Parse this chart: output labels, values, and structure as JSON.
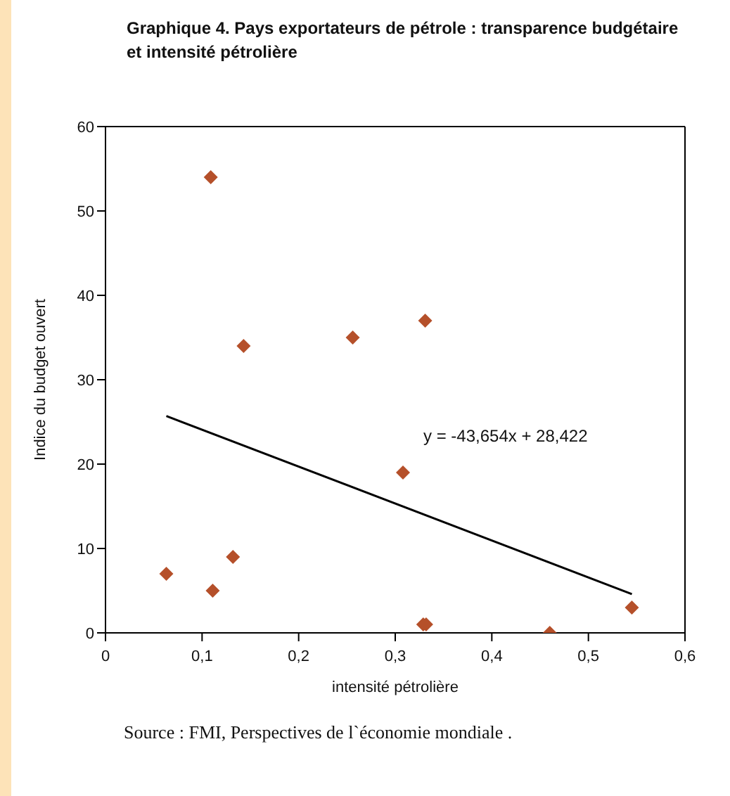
{
  "chart_data": {
    "type": "scatter",
    "title": "Graphique 4. Pays exportateurs de pétrole :  transparence budgétaire et intensité pétrolière",
    "xlabel": "intensité pétrolière",
    "ylabel": "Indice du budget ouvert",
    "xlim": [
      0,
      0.6
    ],
    "xticks": [
      0,
      {
        "value": 0.1,
        "label": "0,1"
      },
      {
        "value": 0.2,
        "label": "0,2"
      },
      {
        "value": 0.3,
        "label": "0,3"
      },
      {
        "value": 0.4,
        "label": "0,4"
      },
      {
        "value": 0.5,
        "label": "0,5"
      },
      {
        "value": 0.6,
        "label": "0,6"
      }
    ],
    "ylim": [
      0,
      60
    ],
    "yticks": [
      0,
      10,
      20,
      30,
      40,
      50,
      60
    ],
    "marker": "diamond",
    "series": [
      {
        "color": "#b5502a",
        "x": [
          0.109,
          0.143,
          0.256,
          0.331,
          0.308,
          0.063,
          0.111,
          0.132,
          0.329,
          0.332,
          0.46,
          0.545
        ],
        "values": [
          54,
          34,
          35,
          37,
          19,
          7,
          5,
          9,
          1,
          1,
          0,
          3
        ]
      },
      {
        "type": "line",
        "color": "#000000",
        "marker": "none",
        "line_style": "solid",
        "x": [
          0.063,
          0.545
        ],
        "values": [
          25.7,
          4.6
        ]
      }
    ],
    "annotations": [
      "y = -43,654x + 28,422",
      "Source : FMI, Perspectives de l`économie mondiale ."
    ]
  }
}
